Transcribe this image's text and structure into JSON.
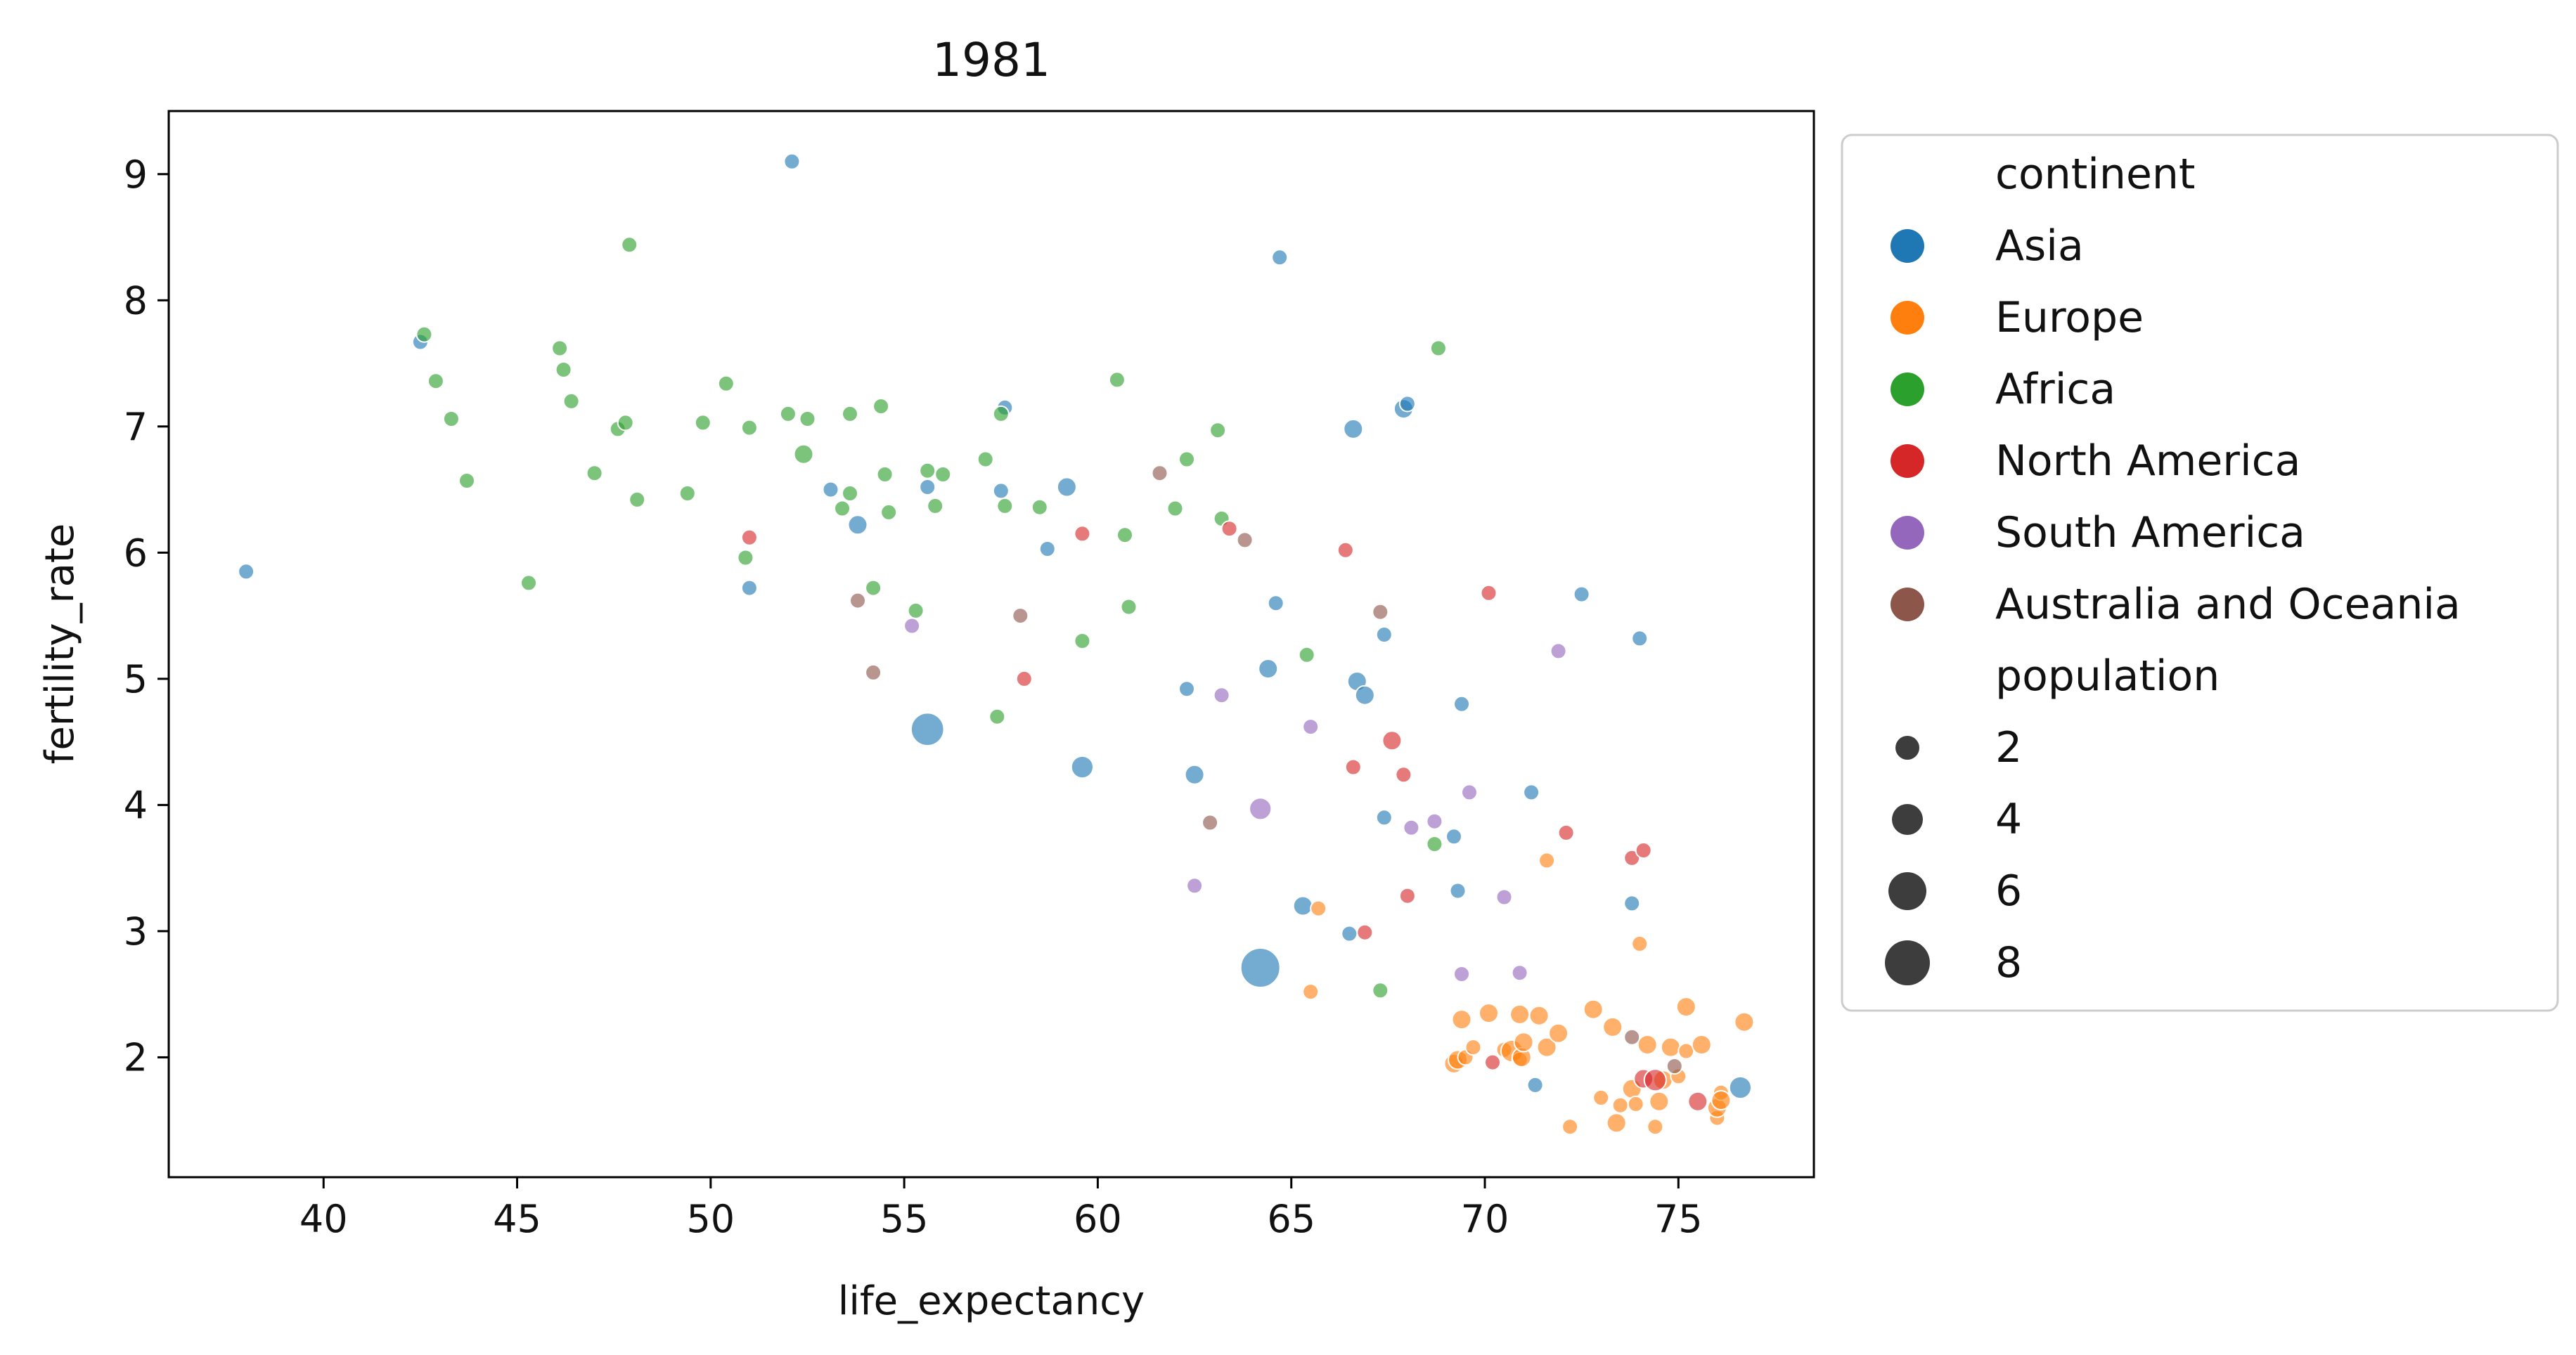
{
  "chart_data": {
    "type": "scatter",
    "title": "1981",
    "xlabel": "life_expectancy",
    "ylabel": "fertility_rate",
    "xlim": [
      36,
      78.5
    ],
    "ylim": [
      1.05,
      9.5
    ],
    "x_ticks": [
      40,
      45,
      50,
      55,
      60,
      65,
      70,
      75
    ],
    "y_ticks": [
      2,
      3,
      4,
      5,
      6,
      7,
      8,
      9
    ],
    "grid": false,
    "legend_position": "outside-right",
    "hue_title": "continent",
    "size_title": "population",
    "size_legend": [
      2,
      4,
      6,
      8
    ],
    "colors": {
      "Asia": "#1f77b4",
      "Europe": "#ff7f0e",
      "Africa": "#2ca02c",
      "North America": "#d62728",
      "South America": "#9467bd",
      "Australia and Oceania": "#8c564b"
    },
    "series": [
      {
        "name": "Asia",
        "points": [
          [
            38.0,
            5.85,
            1
          ],
          [
            42.5,
            7.67,
            1
          ],
          [
            52.1,
            9.1,
            1
          ],
          [
            53.1,
            6.5,
            1
          ],
          [
            53.8,
            6.22,
            1.5
          ],
          [
            51.0,
            5.72,
            1
          ],
          [
            55.6,
            6.52,
            1
          ],
          [
            55.6,
            4.6,
            4.5
          ],
          [
            57.5,
            6.49,
            1
          ],
          [
            57.6,
            7.15,
            1
          ],
          [
            58.7,
            6.03,
            1
          ],
          [
            59.2,
            6.52,
            1.5
          ],
          [
            59.6,
            4.3,
            2
          ],
          [
            62.3,
            4.92,
            1
          ],
          [
            62.5,
            4.24,
            1.5
          ],
          [
            64.2,
            2.71,
            6.5
          ],
          [
            64.4,
            5.08,
            1.5
          ],
          [
            64.6,
            5.6,
            1
          ],
          [
            64.7,
            8.34,
            1
          ],
          [
            65.3,
            3.2,
            1.5
          ],
          [
            66.5,
            2.98,
            1
          ],
          [
            66.6,
            6.98,
            1.5
          ],
          [
            66.7,
            4.98,
            1.5
          ],
          [
            66.9,
            4.87,
            1.5
          ],
          [
            67.4,
            5.35,
            1
          ],
          [
            67.4,
            3.9,
            1
          ],
          [
            67.9,
            7.14,
            1.5
          ],
          [
            68.0,
            7.18,
            1
          ],
          [
            69.2,
            3.75,
            1
          ],
          [
            69.3,
            3.32,
            1
          ],
          [
            69.4,
            4.8,
            1
          ],
          [
            71.2,
            4.1,
            1
          ],
          [
            71.3,
            1.78,
            1
          ],
          [
            72.5,
            5.67,
            1
          ],
          [
            73.8,
            3.22,
            1
          ],
          [
            74.0,
            5.32,
            1
          ],
          [
            76.6,
            1.76,
            2
          ]
        ]
      },
      {
        "name": "Europe",
        "points": [
          [
            65.5,
            2.52,
            1
          ],
          [
            65.7,
            3.18,
            1
          ],
          [
            69.2,
            1.95,
            1.5
          ],
          [
            69.3,
            1.98,
            1.5
          ],
          [
            69.4,
            2.3,
            1.5
          ],
          [
            69.5,
            2.0,
            1
          ],
          [
            69.7,
            2.08,
            1
          ],
          [
            70.1,
            2.35,
            1.5
          ],
          [
            70.5,
            2.06,
            1
          ],
          [
            70.7,
            2.05,
            2
          ],
          [
            70.9,
            1.98,
            1
          ],
          [
            70.9,
            2.34,
            1.5
          ],
          [
            70.95,
            2.0,
            1.5
          ],
          [
            71.0,
            2.12,
            1.5
          ],
          [
            71.4,
            2.33,
            1.5
          ],
          [
            71.6,
            2.08,
            1.5
          ],
          [
            71.6,
            3.56,
            1
          ],
          [
            71.9,
            2.19,
            1.5
          ],
          [
            72.2,
            1.45,
            1
          ],
          [
            72.8,
            2.38,
            1.5
          ],
          [
            73.0,
            1.68,
            1
          ],
          [
            73.3,
            2.24,
            1.5
          ],
          [
            73.4,
            1.48,
            1.5
          ],
          [
            73.5,
            1.62,
            1
          ],
          [
            73.8,
            1.75,
            1.5
          ],
          [
            73.9,
            1.63,
            1
          ],
          [
            74.0,
            2.9,
            1
          ],
          [
            74.2,
            2.1,
            1.5
          ],
          [
            74.4,
            1.45,
            1
          ],
          [
            74.5,
            1.65,
            1.5
          ],
          [
            74.6,
            1.82,
            1.5
          ],
          [
            74.8,
            2.08,
            1.5
          ],
          [
            75.0,
            1.85,
            1
          ],
          [
            75.2,
            2.4,
            1.5
          ],
          [
            75.2,
            2.05,
            1
          ],
          [
            75.6,
            2.1,
            1.5
          ],
          [
            76.0,
            1.52,
            1
          ],
          [
            76.0,
            1.6,
            1.5
          ],
          [
            76.1,
            1.72,
            1
          ],
          [
            76.1,
            1.66,
            1.5
          ],
          [
            76.7,
            2.28,
            1.5
          ]
        ]
      },
      {
        "name": "Africa",
        "points": [
          [
            42.6,
            7.73,
            1
          ],
          [
            42.9,
            7.36,
            1
          ],
          [
            43.3,
            7.06,
            1
          ],
          [
            43.7,
            6.57,
            1
          ],
          [
            45.3,
            5.76,
            1
          ],
          [
            46.1,
            7.62,
            1
          ],
          [
            46.2,
            7.45,
            1
          ],
          [
            46.4,
            7.2,
            1
          ],
          [
            47.0,
            6.63,
            1
          ],
          [
            47.6,
            6.98,
            1
          ],
          [
            47.8,
            7.03,
            1
          ],
          [
            47.9,
            8.44,
            1
          ],
          [
            48.1,
            6.42,
            1
          ],
          [
            49.4,
            6.47,
            1
          ],
          [
            49.8,
            7.03,
            1
          ],
          [
            50.4,
            7.34,
            1
          ],
          [
            50.9,
            5.96,
            1
          ],
          [
            51.0,
            6.99,
            1
          ],
          [
            52.0,
            7.1,
            1
          ],
          [
            52.4,
            6.78,
            1.5
          ],
          [
            52.5,
            7.06,
            1
          ],
          [
            53.4,
            6.35,
            1
          ],
          [
            53.6,
            6.47,
            1
          ],
          [
            53.6,
            7.1,
            1
          ],
          [
            54.2,
            5.72,
            1
          ],
          [
            54.4,
            7.16,
            1
          ],
          [
            54.5,
            6.62,
            1
          ],
          [
            54.6,
            6.32,
            1
          ],
          [
            55.3,
            5.54,
            1
          ],
          [
            55.6,
            6.65,
            1
          ],
          [
            55.8,
            6.37,
            1
          ],
          [
            56.0,
            6.62,
            1
          ],
          [
            57.1,
            6.74,
            1
          ],
          [
            57.4,
            4.7,
            1
          ],
          [
            57.5,
            7.1,
            1
          ],
          [
            57.6,
            6.37,
            1
          ],
          [
            58.5,
            6.36,
            1
          ],
          [
            59.6,
            5.3,
            1
          ],
          [
            60.5,
            7.37,
            1
          ],
          [
            60.7,
            6.14,
            1
          ],
          [
            60.8,
            5.57,
            1
          ],
          [
            62.0,
            6.35,
            1
          ],
          [
            62.3,
            6.74,
            1
          ],
          [
            63.1,
            6.97,
            1
          ],
          [
            63.2,
            6.27,
            1
          ],
          [
            65.4,
            5.19,
            1
          ],
          [
            67.3,
            2.53,
            1
          ],
          [
            68.7,
            3.69,
            1
          ],
          [
            68.8,
            7.62,
            1
          ]
        ]
      },
      {
        "name": "North America",
        "points": [
          [
            51.0,
            6.12,
            1
          ],
          [
            58.1,
            5.0,
            1
          ],
          [
            59.6,
            6.15,
            1
          ],
          [
            63.4,
            6.19,
            1
          ],
          [
            66.4,
            6.02,
            1
          ],
          [
            66.6,
            4.3,
            1
          ],
          [
            66.9,
            2.99,
            1
          ],
          [
            67.6,
            4.51,
            1.5
          ],
          [
            67.9,
            4.24,
            1
          ],
          [
            68.0,
            3.28,
            1
          ],
          [
            70.1,
            5.68,
            1
          ],
          [
            70.2,
            1.96,
            1
          ],
          [
            72.1,
            3.78,
            1
          ],
          [
            73.8,
            3.58,
            1
          ],
          [
            74.1,
            3.64,
            1
          ],
          [
            74.1,
            1.83,
            1.5
          ],
          [
            74.4,
            1.82,
            2
          ],
          [
            75.5,
            1.65,
            1.5
          ]
        ]
      },
      {
        "name": "South America",
        "points": [
          [
            55.2,
            5.42,
            1
          ],
          [
            62.5,
            3.36,
            1
          ],
          [
            63.2,
            4.87,
            1
          ],
          [
            64.2,
            3.97,
            2
          ],
          [
            65.5,
            4.62,
            1
          ],
          [
            68.1,
            3.82,
            1
          ],
          [
            68.7,
            3.87,
            1
          ],
          [
            69.4,
            2.66,
            1
          ],
          [
            69.6,
            4.1,
            1
          ],
          [
            70.5,
            3.27,
            1
          ],
          [
            70.9,
            2.67,
            1
          ],
          [
            71.9,
            5.22,
            1
          ]
        ]
      },
      {
        "name": "Australia and Oceania",
        "points": [
          [
            53.8,
            5.62,
            1
          ],
          [
            54.2,
            5.05,
            1
          ],
          [
            58.0,
            5.5,
            1
          ],
          [
            61.6,
            6.63,
            1
          ],
          [
            62.9,
            3.86,
            1
          ],
          [
            63.8,
            6.1,
            1
          ],
          [
            67.3,
            5.53,
            1
          ],
          [
            73.8,
            2.16,
            1
          ],
          [
            74.9,
            1.93,
            1
          ]
        ]
      }
    ]
  }
}
